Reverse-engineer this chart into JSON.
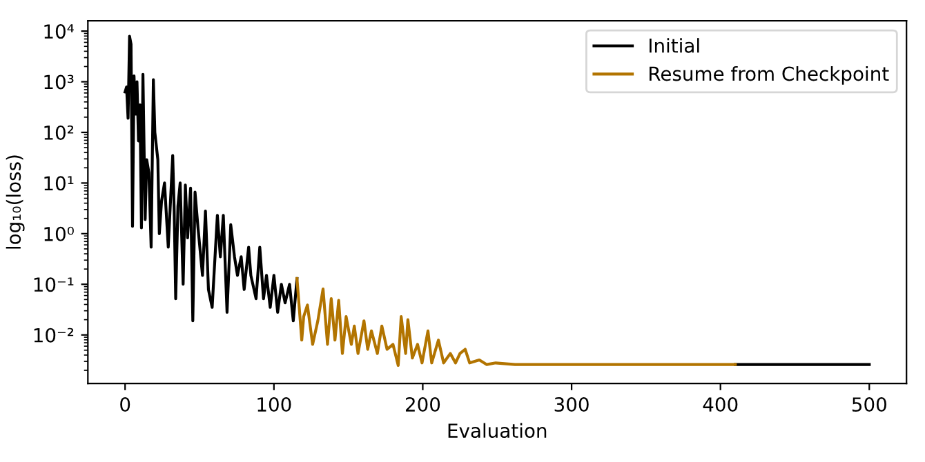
{
  "chart_data": {
    "type": "line",
    "xlabel": "Evaluation",
    "ylabel": "log₁₀(loss)",
    "log": "y",
    "legend": "top right",
    "grid": false,
    "xlim": [
      -25,
      525
    ],
    "xticks": [
      0,
      100,
      200,
      300,
      400,
      500
    ],
    "ylim": [
      0.0011,
      16000
    ],
    "yticks": [
      {
        "value": 0.01,
        "label": "10⁻²"
      },
      {
        "value": 0.1,
        "label": "10⁻¹"
      },
      {
        "value": 1,
        "label": "10⁰"
      },
      {
        "value": 10,
        "label": "10¹"
      },
      {
        "value": 100,
        "label": "10²"
      },
      {
        "value": 1000,
        "label": "10³"
      },
      {
        "value": 10000,
        "label": "10⁴"
      }
    ],
    "series": [
      {
        "name": "Initial",
        "color": "#000000",
        "x": [
          0,
          1,
          2,
          3,
          4,
          5,
          6,
          7,
          8,
          9,
          10,
          11,
          12,
          13.5,
          14.5,
          16,
          17.5,
          19,
          20,
          22,
          23,
          24.5,
          26.5,
          29,
          32,
          33,
          34,
          35.5,
          37,
          39,
          40.5,
          42,
          44,
          45.5,
          47,
          49,
          52,
          54,
          56,
          58.5,
          62,
          64,
          66,
          68.5,
          71,
          73.5,
          75.5,
          78,
          80,
          83,
          84.5,
          88,
          90.5,
          93,
          95,
          97.5,
          100,
          102.5,
          105,
          107.5,
          110.5,
          113,
          115.5,
          300,
          410,
          500
        ],
        "values": [
          630,
          790,
          190,
          7900,
          5500,
          1.4,
          1300,
          230,
          1000,
          68,
          350,
          1.3,
          1400,
          1.9,
          29,
          16,
          0.54,
          1100,
          100,
          29,
          1.0,
          4.4,
          10,
          0.54,
          35,
          2.8,
          0.052,
          3.5,
          10,
          0.1,
          9.1,
          0.83,
          7.9,
          0.019,
          6.6,
          1.3,
          0.15,
          2.8,
          0.079,
          0.035,
          2.3,
          0.35,
          2.3,
          0.028,
          1.5,
          0.35,
          0.15,
          0.35,
          0.079,
          0.54,
          0.15,
          0.052,
          0.54,
          0.052,
          0.15,
          0.035,
          0.15,
          0.028,
          0.1,
          0.043,
          0.1,
          0.019,
          0.13,
          null,
          0.0026,
          0.0026
        ]
      },
      {
        "name": "Resume from Checkpoint",
        "color": "#b27400",
        "x": [
          115.5,
          118.7,
          120,
          122.5,
          126,
          129.5,
          133,
          136,
          138.5,
          141,
          143.5,
          146,
          148.5,
          152,
          154,
          156.5,
          160.5,
          163,
          165.5,
          169.5,
          172.5,
          176,
          180,
          183.5,
          185.5,
          188.5,
          190,
          193,
          196.5,
          199.5,
          203.5,
          206,
          210.5,
          214,
          218.5,
          222,
          225,
          228.5,
          231.5,
          238,
          243,
          249,
          262,
          410
        ],
        "values": [
          0.13,
          0.0079,
          0.023,
          0.039,
          0.0065,
          0.019,
          0.081,
          0.0065,
          0.052,
          0.0079,
          0.048,
          0.0043,
          0.023,
          0.0065,
          0.015,
          0.0043,
          0.019,
          0.0052,
          0.012,
          0.0043,
          0.015,
          0.0052,
          0.0065,
          0.0025,
          0.023,
          0.0043,
          0.02,
          0.0035,
          0.0065,
          0.0028,
          0.012,
          0.0028,
          0.0079,
          0.0028,
          0.0043,
          0.0028,
          0.0043,
          0.0052,
          0.0028,
          0.0032,
          0.0026,
          0.0028,
          0.0026,
          0.0026
        ]
      }
    ]
  }
}
